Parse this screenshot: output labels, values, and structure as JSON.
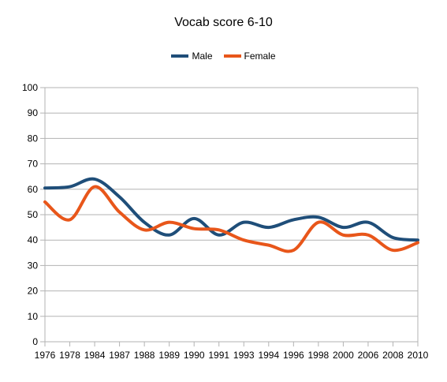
{
  "chart_data": {
    "type": "line",
    "title": "Vocab score 6-10",
    "xlabel": "",
    "ylabel": "",
    "categories": [
      "1976",
      "1978",
      "1984",
      "1987",
      "1988",
      "1989",
      "1990",
      "1991",
      "1993",
      "1994",
      "1996",
      "1998",
      "2000",
      "2006",
      "2008",
      "2010"
    ],
    "ylim": [
      0,
      100
    ],
    "yticks": [
      0,
      10,
      20,
      30,
      40,
      50,
      60,
      70,
      80,
      90,
      100
    ],
    "grid": true,
    "legend_position": "top",
    "series": [
      {
        "name": "Male",
        "color": "#1f4e79",
        "values": [
          60.5,
          61,
          64,
          57,
          47,
          42,
          48.5,
          42,
          47,
          45,
          48,
          49,
          45,
          47,
          41,
          40
        ]
      },
      {
        "name": "Female",
        "color": "#e8561a",
        "values": [
          55,
          48,
          61,
          51,
          44,
          47,
          44.5,
          44,
          40,
          38,
          36,
          47,
          42,
          42,
          36,
          39
        ]
      }
    ]
  }
}
